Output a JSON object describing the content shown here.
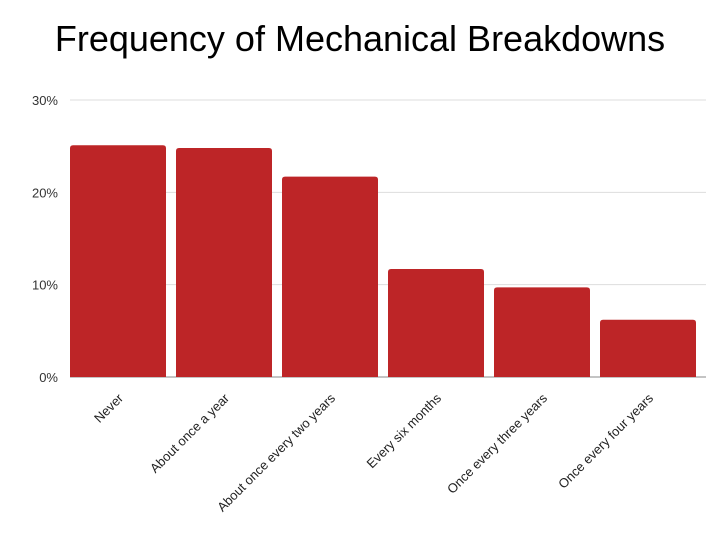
{
  "chart_data": {
    "type": "bar",
    "title": "Frequency of Mechanical Breakdowns",
    "xlabel": "",
    "ylabel": "",
    "categories": [
      "Never",
      "About once a year",
      "About once every two years",
      "Every six months",
      "Once every three years",
      "Once every four years"
    ],
    "values": [
      25.1,
      24.8,
      21.7,
      11.7,
      9.7,
      6.2
    ],
    "ylim": [
      0,
      30
    ],
    "yticks": [
      "0%",
      "10%",
      "20%",
      "30%"
    ],
    "grid": true,
    "legend": "none",
    "colors": {
      "bar": "#bd2527",
      "grid": "#dddddd",
      "axis": "#888888"
    }
  }
}
